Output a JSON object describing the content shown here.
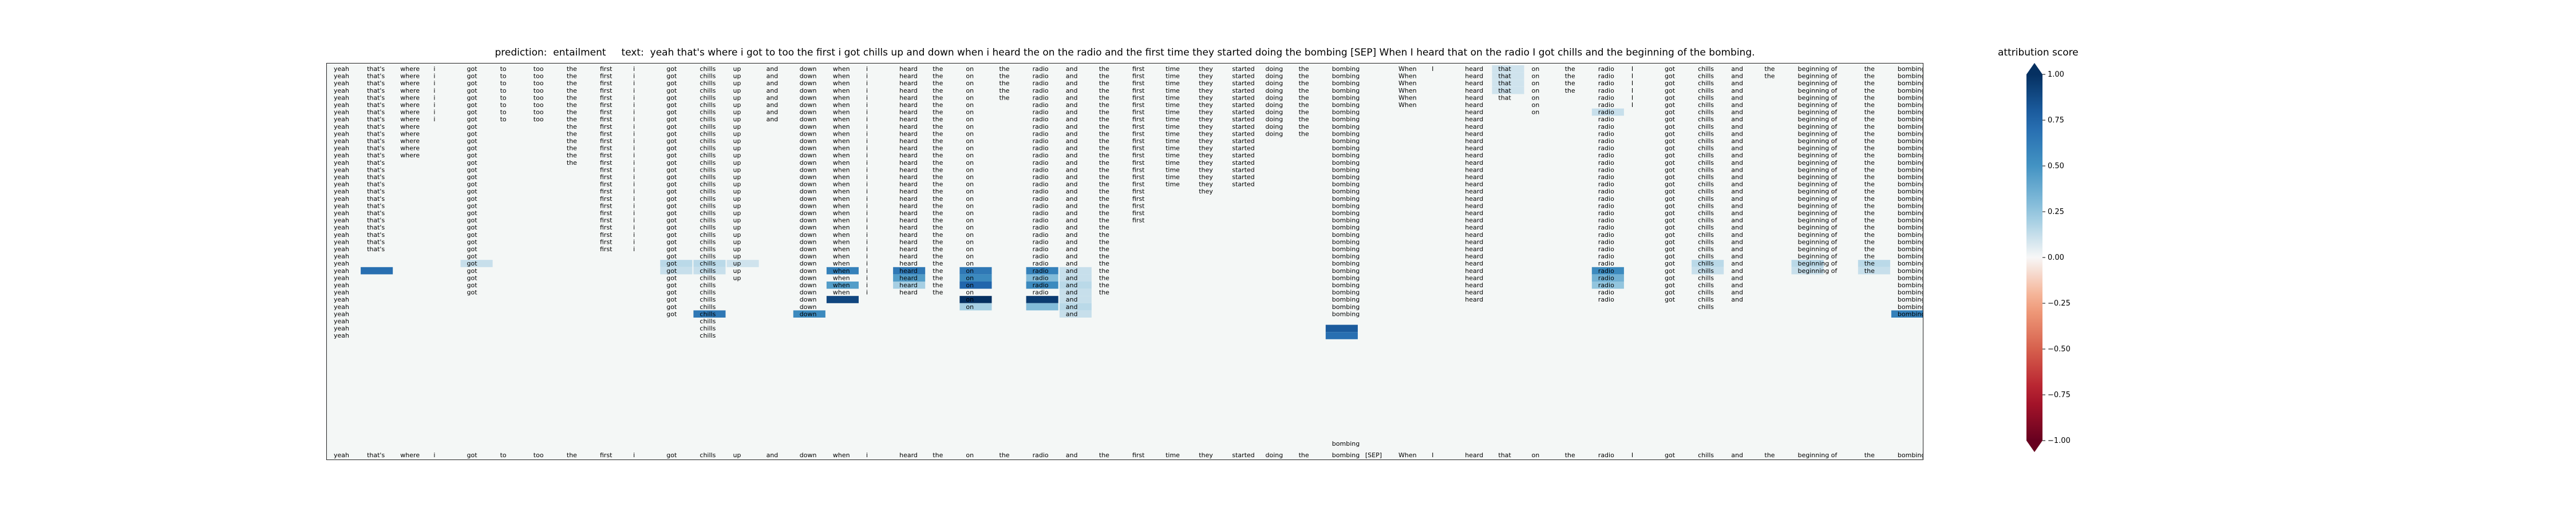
{
  "header": {
    "prediction_label": "prediction:",
    "prediction": "entailment",
    "text_label": "text:",
    "text": "yeah that's where i got to too the first i got chills up and down when i heard the on the radio and the first time they started doing the bombing [SEP] When I heard that on the radio I got chills and the beginning of the bombing."
  },
  "chart_data": {
    "type": "heatmap",
    "title": "prediction:  entailment     text:  yeah that's where i got to too the first i got chills up and down when i heard the on the radio and the first time they started doing the bombing [SEP] When I heard that on the radio I got chills and the beginning of the bombing.",
    "x_tokens": [
      "yeah",
      "that's",
      "where",
      "i",
      "got",
      "to",
      "too",
      "the",
      "first",
      "i",
      "got",
      "chills",
      "up",
      "and",
      "down",
      "when",
      "i",
      "heard",
      "the",
      "on",
      "the",
      "radio",
      "and",
      "the",
      "first",
      "time",
      "they",
      "started",
      "doing",
      "the",
      "bombing",
      "[SEP]",
      "When",
      "I",
      "heard",
      "that",
      "on",
      "the",
      "radio",
      "I",
      "got",
      "chills",
      "and",
      "the",
      "beginning",
      "of",
      "the",
      "bombing."
    ],
    "bottom_axis_labels": [
      "yeah",
      "that's",
      "where",
      "i",
      "got",
      "to",
      "too",
      "the",
      "first",
      "i",
      "got",
      "chills",
      "up",
      "and",
      "down",
      "when",
      "i",
      "heard",
      "the",
      "on",
      "the",
      "radio",
      "and",
      "the",
      "first",
      "time",
      "they",
      "started",
      "doing",
      "the",
      "bombing",
      "[SEP]",
      "When",
      "I",
      "heard",
      "that",
      "on",
      "the",
      "radio",
      "I",
      "got",
      "chills",
      "and",
      "the",
      "beginning",
      "of",
      "the",
      "bombing."
    ],
    "column_rows": [
      38,
      26,
      13,
      8,
      32,
      8,
      8,
      14,
      26,
      26,
      35,
      38,
      30,
      8,
      35,
      32,
      32,
      32,
      32,
      34,
      5,
      32,
      35,
      32,
      22,
      17,
      18,
      17,
      10,
      10,
      35,
      0,
      6,
      1,
      33,
      5,
      7,
      4,
      33,
      6,
      33,
      34,
      33,
      2,
      29,
      29,
      29,
      35
    ],
    "bottom_extra": {
      "column": 30,
      "text": "bombing"
    },
    "highlights": [
      {
        "col": 1,
        "row": 28,
        "score": 0.7
      },
      {
        "col": 4,
        "row": 27,
        "score": 0.12
      },
      {
        "col": 10,
        "row": 27,
        "score": 0.15
      },
      {
        "col": 10,
        "row": 28,
        "score": 0.12
      },
      {
        "col": 11,
        "row": 27,
        "score": 0.15
      },
      {
        "col": 11,
        "row": 28,
        "score": 0.12
      },
      {
        "col": 11,
        "row": 34,
        "score": 0.65
      },
      {
        "col": 12,
        "row": 27,
        "score": 0.1
      },
      {
        "col": 14,
        "row": 34,
        "score": 0.55
      },
      {
        "col": 15,
        "row": 28,
        "score": 0.6
      },
      {
        "col": 15,
        "row": 30,
        "score": 0.45
      },
      {
        "col": 15,
        "row": 32,
        "score": 0.9
      },
      {
        "col": 17,
        "row": 28,
        "score": 0.65
      },
      {
        "col": 17,
        "row": 29,
        "score": 0.45
      },
      {
        "col": 17,
        "row": 30,
        "score": 0.2
      },
      {
        "col": 19,
        "row": 28,
        "score": 0.65
      },
      {
        "col": 19,
        "row": 29,
        "score": 0.55
      },
      {
        "col": 19,
        "row": 30,
        "score": 0.75
      },
      {
        "col": 19,
        "row": 32,
        "score": 1.0
      },
      {
        "col": 19,
        "row": 33,
        "score": 0.2
      },
      {
        "col": 21,
        "row": 28,
        "score": 0.6
      },
      {
        "col": 21,
        "row": 29,
        "score": 0.3
      },
      {
        "col": 21,
        "row": 30,
        "score": 0.55
      },
      {
        "col": 21,
        "row": 32,
        "score": 0.95
      },
      {
        "col": 21,
        "row": 33,
        "score": 0.3
      },
      {
        "col": 22,
        "row": 28,
        "score": 0.12
      },
      {
        "col": 22,
        "row": 29,
        "score": 0.12
      },
      {
        "col": 22,
        "row": 30,
        "score": 0.15
      },
      {
        "col": 22,
        "row": 31,
        "score": 0.12
      },
      {
        "col": 22,
        "row": 32,
        "score": 0.12
      },
      {
        "col": 22,
        "row": 33,
        "score": 0.15
      },
      {
        "col": 22,
        "row": 34,
        "score": 0.12
      },
      {
        "col": 30,
        "row": 36,
        "score": 0.8
      },
      {
        "col": 30,
        "row": 37,
        "score": 0.7
      },
      {
        "col": 35,
        "row": 0,
        "score": 0.1
      },
      {
        "col": 35,
        "row": 1,
        "score": 0.1
      },
      {
        "col": 35,
        "row": 2,
        "score": 0.1
      },
      {
        "col": 35,
        "row": 3,
        "score": 0.1
      },
      {
        "col": 38,
        "row": 6,
        "score": 0.12
      },
      {
        "col": 38,
        "row": 28,
        "score": 0.55
      },
      {
        "col": 38,
        "row": 29,
        "score": 0.35
      },
      {
        "col": 38,
        "row": 30,
        "score": 0.25
      },
      {
        "col": 41,
        "row": 27,
        "score": 0.15
      },
      {
        "col": 41,
        "row": 28,
        "score": 0.12
      },
      {
        "col": 44,
        "row": 27,
        "score": 0.15
      },
      {
        "col": 44,
        "row": 28,
        "score": 0.12
      },
      {
        "col": 46,
        "row": 27,
        "score": 0.15
      },
      {
        "col": 46,
        "row": 28,
        "score": 0.12
      },
      {
        "col": 47,
        "row": 34,
        "score": 0.6
      }
    ],
    "colorbar": {
      "label": "attribution score",
      "range": [
        -1.0,
        1.0
      ],
      "ticks": [
        1.0,
        0.75,
        0.5,
        0.25,
        0.0,
        -0.25,
        -0.5,
        -0.75,
        -1.0
      ],
      "tick_labels": [
        "1.00",
        "0.75",
        "0.50",
        "0.25",
        "0.00",
        "−0.25",
        "−0.50",
        "−0.75",
        "−1.00"
      ],
      "colormap": "RdBu"
    }
  }
}
